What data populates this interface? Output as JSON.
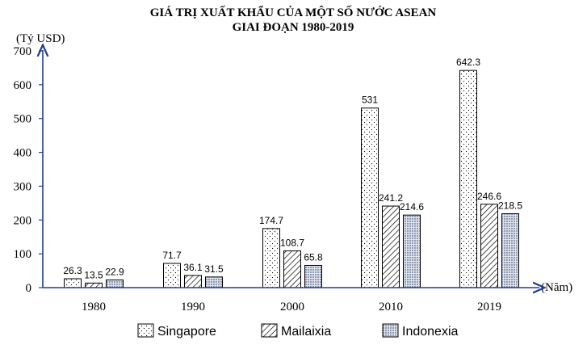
{
  "chart_data": {
    "type": "bar",
    "title": "GIÁ TRỊ XUẤT KHẨU CỦA MỘT SỐ NƯỚC ASEAN",
    "subtitle": "GIAI ĐOẠN 1980-2019",
    "ylabel": "(Tỷ USD)",
    "xlabel": "(Năm)",
    "ylim": [
      0,
      700
    ],
    "yticks": [
      0,
      100,
      200,
      300,
      400,
      500,
      600,
      700
    ],
    "categories": [
      "1980",
      "1990",
      "2000",
      "2010",
      "2019"
    ],
    "series": [
      {
        "name": "Singapore",
        "pattern": "dots-sparse",
        "values": [
          26.3,
          71.7,
          174.7,
          531,
          642.3
        ],
        "labels": [
          "26.3",
          "71.7",
          "174.7",
          "531",
          "642.3"
        ]
      },
      {
        "name": "Mailaixia",
        "pattern": "hatch",
        "values": [
          13.5,
          36.1,
          108.7,
          241.2,
          246.6
        ],
        "labels": [
          "13.5",
          "36.1",
          "108.7",
          "241.2",
          "246.6"
        ]
      },
      {
        "name": "Indonexia",
        "pattern": "dots-dense",
        "values": [
          22.9,
          31.5,
          65.8,
          214.6,
          218.5
        ],
        "labels": [
          "22.9",
          "31.5",
          "65.8",
          "214.6",
          "218.5"
        ]
      }
    ],
    "legend_position": "bottom",
    "grid": false,
    "colors": {
      "axis": "#1f3f8f",
      "bar_stroke": "#000000",
      "text": "#000000"
    }
  }
}
